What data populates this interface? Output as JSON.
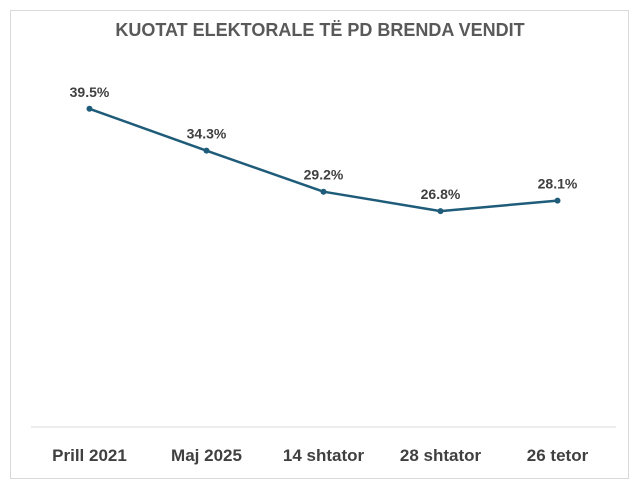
{
  "chart_data": {
    "type": "line",
    "title": "KUOTAT ELEKTORALE TË PD BRENDA VENDIT",
    "categories": [
      "Prill 2021",
      "Maj 2025",
      "14 shtator",
      "28 shtator",
      "26 tetor"
    ],
    "series": [
      {
        "values": [
          39.5,
          34.3,
          29.2,
          26.8,
          28.1
        ],
        "labels": [
          "39.5%",
          "34.3%",
          "29.2%",
          "26.8%",
          "28.1%"
        ],
        "color": "#1f5c7a"
      }
    ],
    "ylim": [
      0,
      53
    ],
    "grid": false,
    "legend": "none"
  }
}
